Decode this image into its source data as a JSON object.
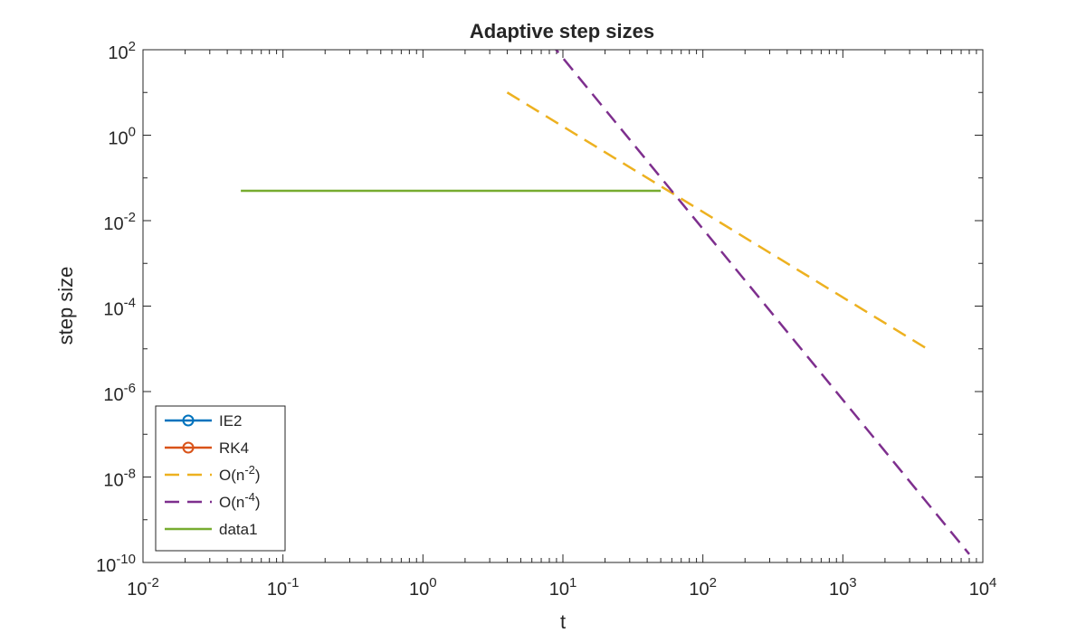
{
  "chart_data": {
    "type": "line",
    "title": "Adaptive step sizes",
    "xlabel": "t",
    "ylabel": "step size",
    "xscale": "log",
    "yscale": "log",
    "xlim": [
      0.01,
      10000
    ],
    "ylim": [
      1e-10,
      100
    ],
    "grid": false,
    "legend_position": "bottom-left",
    "x_ticks": [
      {
        "value": 0.01,
        "base": "10",
        "exp": "-2"
      },
      {
        "value": 0.1,
        "base": "10",
        "exp": "-1"
      },
      {
        "value": 1,
        "base": "10",
        "exp": "0"
      },
      {
        "value": 10,
        "base": "10",
        "exp": "1"
      },
      {
        "value": 100,
        "base": "10",
        "exp": "2"
      },
      {
        "value": 1000,
        "base": "10",
        "exp": "3"
      },
      {
        "value": 10000,
        "base": "10",
        "exp": "4"
      }
    ],
    "y_ticks": [
      {
        "value": 1e-10,
        "base": "10",
        "exp": "-10"
      },
      {
        "value": 1e-08,
        "base": "10",
        "exp": "-8"
      },
      {
        "value": 1e-06,
        "base": "10",
        "exp": "-6"
      },
      {
        "value": 0.0001,
        "base": "10",
        "exp": "-4"
      },
      {
        "value": 0.01,
        "base": "10",
        "exp": "-2"
      },
      {
        "value": 1,
        "base": "10",
        "exp": "0"
      },
      {
        "value": 100,
        "base": "10",
        "exp": "2"
      }
    ],
    "series": [
      {
        "name": "IE2",
        "color": "#0072BD",
        "style": "solid",
        "marker": "circle",
        "x": [],
        "y": []
      },
      {
        "name": "RK4",
        "color": "#D95319",
        "style": "solid",
        "marker": "circle",
        "x": [],
        "y": []
      },
      {
        "name": "O(n-2)",
        "legend_base": "O(n",
        "legend_exp": "-2",
        "legend_tail": ")",
        "color": "#EDB120",
        "style": "dashed",
        "marker": "none",
        "x": [
          4,
          4000
        ],
        "y": [
          10,
          1e-05
        ]
      },
      {
        "name": "O(n-4)",
        "legend_base": "O(n",
        "legend_exp": "-4",
        "legend_tail": ")",
        "color": "#7E2F8E",
        "style": "dashed",
        "marker": "none",
        "x": [
          8,
          8000
        ],
        "y": [
          156.25,
          1.5625e-10
        ]
      },
      {
        "name": "data1",
        "color": "#77AC30",
        "style": "solid",
        "marker": "none",
        "x": [
          0.05,
          50
        ],
        "y": [
          0.05,
          0.05
        ]
      }
    ]
  }
}
